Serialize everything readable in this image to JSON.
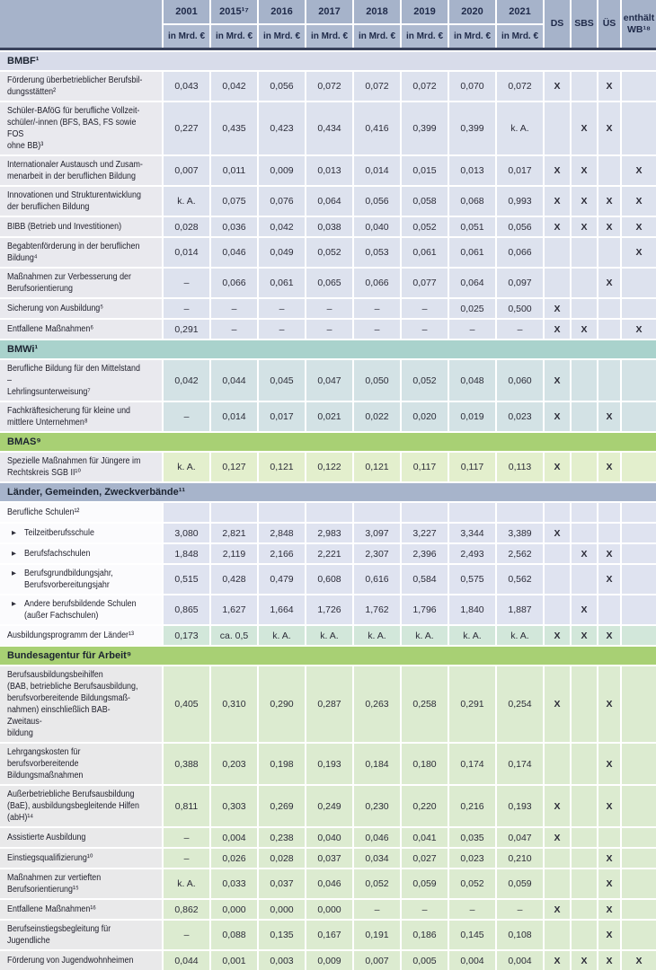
{
  "header": {
    "year_columns": [
      "2001",
      "2015¹⁷",
      "2016",
      "2017",
      "2018",
      "2019",
      "2020",
      "2021"
    ],
    "unit_label": "in Mrd. €",
    "flag_columns": [
      "DS",
      "SBS",
      "ÜS",
      "enthält\nWB¹⁸"
    ]
  },
  "colors": {
    "header_bg": "#a6b3ca",
    "unit_bg": "#aebad0",
    "header_border": "#39425c",
    "styles": {
      "bmbf": {
        "band": "#d8dcea",
        "label": "#e9e9ee",
        "value": "#dde2ee"
      },
      "bmwi": {
        "band": "#a9d2cc",
        "label": "#e9e9ee",
        "value": "#d3e2e5"
      },
      "bmas": {
        "band": "#a8d074",
        "label": "#e9e9ee",
        "value": "#e3efcd"
      },
      "laender": {
        "band": "#a7b4cb",
        "label": "#fbfbfd",
        "value": "#dfe3f0"
      },
      "ba": {
        "band": "#a8d074",
        "label": "#e9e9ea",
        "value": "#dcebd0"
      }
    },
    "variants": {
      "mint": "#d2e7da"
    }
  },
  "sections": [
    {
      "title": "BMBF¹",
      "style": "bmbf",
      "rows": [
        {
          "label": "Förderung überbetrieblicher Berufsbil-\ndungsstätten²",
          "values": [
            "0,043",
            "0,042",
            "0,056",
            "0,072",
            "0,072",
            "0,072",
            "0,070",
            "0,072"
          ],
          "flags": [
            "X",
            "",
            "X",
            ""
          ]
        },
        {
          "label": "Schüler-BAföG für berufliche Vollzeit-\nschüler/-innen (BFS, BAS, FS sowie FOS\nohne BB)³",
          "values": [
            "0,227",
            "0,435",
            "0,423",
            "0,434",
            "0,416",
            "0,399",
            "0,399",
            "k. A."
          ],
          "flags": [
            "",
            "X",
            "X",
            ""
          ]
        },
        {
          "label": "Internationaler Austausch und Zusam-\nmenarbeit in der beruflichen Bildung",
          "values": [
            "0,007",
            "0,011",
            "0,009",
            "0,013",
            "0,014",
            "0,015",
            "0,013",
            "0,017"
          ],
          "flags": [
            "X",
            "X",
            "",
            "X"
          ]
        },
        {
          "label": "Innovationen und Strukturentwicklung\nder beruflichen Bildung",
          "values": [
            "k. A.",
            "0,075",
            "0,076",
            "0,064",
            "0,056",
            "0,058",
            "0,068",
            "0,993"
          ],
          "flags": [
            "X",
            "X",
            "X",
            "X"
          ]
        },
        {
          "label": "BIBB (Betrieb und Investitionen)",
          "values": [
            "0,028",
            "0,036",
            "0,042",
            "0,038",
            "0,040",
            "0,052",
            "0,051",
            "0,056"
          ],
          "flags": [
            "X",
            "X",
            "X",
            "X"
          ]
        },
        {
          "label": "Begabtenförderung in der beruflichen\nBildung⁴",
          "values": [
            "0,014",
            "0,046",
            "0,049",
            "0,052",
            "0,053",
            "0,061",
            "0,061",
            "0,066"
          ],
          "flags": [
            "",
            "",
            "",
            "X"
          ]
        },
        {
          "label": "Maßnahmen zur Verbesserung der\nBerufsorientierung",
          "values": [
            "–",
            "0,066",
            "0,061",
            "0,065",
            "0,066",
            "0,077",
            "0,064",
            "0,097"
          ],
          "flags": [
            "",
            "",
            "X",
            ""
          ]
        },
        {
          "label": "Sicherung von Ausbildung⁵",
          "values": [
            "–",
            "–",
            "–",
            "–",
            "–",
            "–",
            "0,025",
            "0,500"
          ],
          "flags": [
            "X",
            "",
            "",
            ""
          ]
        },
        {
          "label": "Entfallene Maßnahmen⁶",
          "values": [
            "0,291",
            "–",
            "–",
            "–",
            "–",
            "–",
            "–",
            "–"
          ],
          "flags": [
            "X",
            "X",
            "",
            "X"
          ]
        }
      ]
    },
    {
      "title": "BMWi¹",
      "style": "bmwi",
      "rows": [
        {
          "label": "Berufliche Bildung für den Mittelstand –\nLehrlingsunterweisung⁷",
          "values": [
            "0,042",
            "0,044",
            "0,045",
            "0,047",
            "0,050",
            "0,052",
            "0,048",
            "0,060"
          ],
          "flags": [
            "X",
            "",
            "",
            ""
          ]
        },
        {
          "label": "Fachkräftesicherung für kleine und\nmittlere Unternehmen⁸",
          "values": [
            "–",
            "0,014",
            "0,017",
            "0,021",
            "0,022",
            "0,020",
            "0,019",
            "0,023"
          ],
          "flags": [
            "X",
            "",
            "X",
            ""
          ]
        }
      ]
    },
    {
      "title": "BMAS⁹",
      "style": "bmas",
      "rows": [
        {
          "label": "Spezielle Maßnahmen für Jüngere im\nRechtskreis SGB II¹⁰",
          "values": [
            "k. A.",
            "0,127",
            "0,121",
            "0,122",
            "0,121",
            "0,117",
            "0,117",
            "0,113"
          ],
          "flags": [
            "X",
            "",
            "X",
            ""
          ]
        }
      ]
    },
    {
      "title": "Länder, Gemeinden, Zweckverbände¹¹",
      "style": "laender",
      "rows": [
        {
          "label": "Berufliche Schulen¹²",
          "values": [
            "",
            "",
            "",
            "",
            "",
            "",
            "",
            ""
          ],
          "flags": [
            "",
            "",
            "",
            ""
          ]
        },
        {
          "label": "Teilzeitberufsschule",
          "bullet": true,
          "values": [
            "3,080",
            "2,821",
            "2,848",
            "2,983",
            "3,097",
            "3,227",
            "3,344",
            "3,389"
          ],
          "flags": [
            "X",
            "",
            "",
            ""
          ]
        },
        {
          "label": "Berufsfachschulen",
          "bullet": true,
          "values": [
            "1,848",
            "2,119",
            "2,166",
            "2,221",
            "2,307",
            "2,396",
            "2,493",
            "2,562"
          ],
          "flags": [
            "",
            "X",
            "X",
            ""
          ]
        },
        {
          "label": "Berufsgrundbildungsjahr,\nBerufsvorbereitungsjahr",
          "bullet": true,
          "values": [
            "0,515",
            "0,428",
            "0,479",
            "0,608",
            "0,616",
            "0,584",
            "0,575",
            "0,562"
          ],
          "flags": [
            "",
            "",
            "X",
            ""
          ]
        },
        {
          "label": "Andere berufsbildende Schulen\n(außer Fachschulen)",
          "bullet": true,
          "values": [
            "0,865",
            "1,627",
            "1,664",
            "1,726",
            "1,762",
            "1,796",
            "1,840",
            "1,887"
          ],
          "flags": [
            "",
            "X",
            "",
            ""
          ]
        },
        {
          "label": "Ausbildungsprogramm der Länder¹³",
          "variant": "mint",
          "values": [
            "0,173",
            "ca. 0,5",
            "k. A.",
            "k. A.",
            "k. A.",
            "k. A.",
            "k. A.",
            "k. A."
          ],
          "flags": [
            "X",
            "X",
            "X",
            ""
          ]
        }
      ]
    },
    {
      "title": "Bundesagentur für Arbeit⁹",
      "style": "ba",
      "rows": [
        {
          "label": "Berufsausbildungsbeihilfen\n(BAB, betriebliche Berufsausbildung,\nberufsvorbereitende Bildungsmaß-\nnahmen) einschließlich BAB-Zweitaus-\nbildung",
          "values": [
            "0,405",
            "0,310",
            "0,290",
            "0,287",
            "0,263",
            "0,258",
            "0,291",
            "0,254"
          ],
          "flags": [
            "X",
            "",
            "X",
            ""
          ]
        },
        {
          "label": "Lehrgangskosten für berufsvorbereitende\nBildungsmaßnahmen",
          "values": [
            "0,388",
            "0,203",
            "0,198",
            "0,193",
            "0,184",
            "0,180",
            "0,174",
            "0,174"
          ],
          "flags": [
            "",
            "",
            "X",
            ""
          ]
        },
        {
          "label": "Außerbetriebliche Berufsausbildung\n(BaE), ausbildungsbegleitende Hilfen\n(abH)¹⁴",
          "values": [
            "0,811",
            "0,303",
            "0,269",
            "0,249",
            "0,230",
            "0,220",
            "0,216",
            "0,193"
          ],
          "flags": [
            "X",
            "",
            "X",
            ""
          ]
        },
        {
          "label": "Assistierte Ausbildung",
          "values": [
            "–",
            "0,004",
            "0,238",
            "0,040",
            "0,046",
            "0,041",
            "0,035",
            "0,047"
          ],
          "flags": [
            "X",
            "",
            "",
            ""
          ]
        },
        {
          "label": "Einstiegsqualifizierung¹⁰",
          "values": [
            "–",
            "0,026",
            "0,028",
            "0,037",
            "0,034",
            "0,027",
            "0,023",
            "0,210"
          ],
          "flags": [
            "",
            "",
            "X",
            ""
          ]
        },
        {
          "label": "Maßnahmen zur vertieften\nBerufsorientierung¹⁵",
          "values": [
            "k. A.",
            "0,033",
            "0,037",
            "0,046",
            "0,052",
            "0,059",
            "0,052",
            "0,059"
          ],
          "flags": [
            "",
            "",
            "X",
            ""
          ]
        },
        {
          "label": "Entfallene Maßnahmen¹⁶",
          "values": [
            "0,862",
            "0,000",
            "0,000",
            "0,000",
            "–",
            "–",
            "–",
            "–"
          ],
          "flags": [
            "X",
            "",
            "X",
            ""
          ]
        },
        {
          "label": "Berufseinstiegsbegleitung für Jugendliche",
          "values": [
            "–",
            "0,088",
            "0,135",
            "0,167",
            "0,191",
            "0,186",
            "0,145",
            "0,108"
          ],
          "flags": [
            "",
            "",
            "X",
            ""
          ]
        },
        {
          "label": "Förderung von Jugendwohnheimen",
          "values": [
            "0,044",
            "0,001",
            "0,003",
            "0,009",
            "0,007",
            "0,005",
            "0,004",
            "0,004"
          ],
          "flags": [
            "X",
            "X",
            "X",
            "X"
          ]
        }
      ]
    }
  ]
}
